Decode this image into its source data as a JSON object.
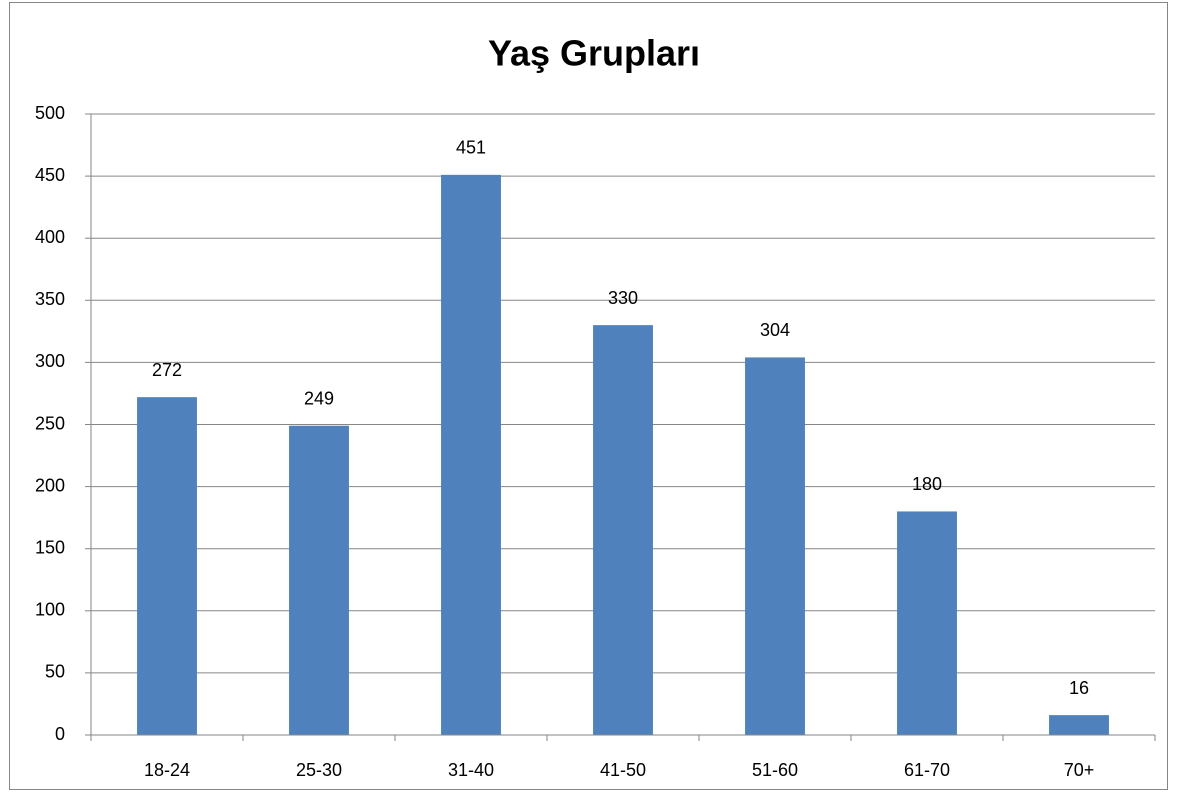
{
  "chart_data": {
    "type": "bar",
    "title": "Yaş Grupları",
    "categories": [
      "18-24",
      "25-30",
      "31-40",
      "41-50",
      "51-60",
      "61-70",
      "70+"
    ],
    "values": [
      272,
      249,
      451,
      330,
      304,
      180,
      16
    ],
    "color": "#4f81bd",
    "ylim": [
      0,
      500
    ],
    "yticks": [
      0,
      50,
      100,
      150,
      200,
      250,
      300,
      350,
      400,
      450,
      500
    ],
    "grid": true
  }
}
